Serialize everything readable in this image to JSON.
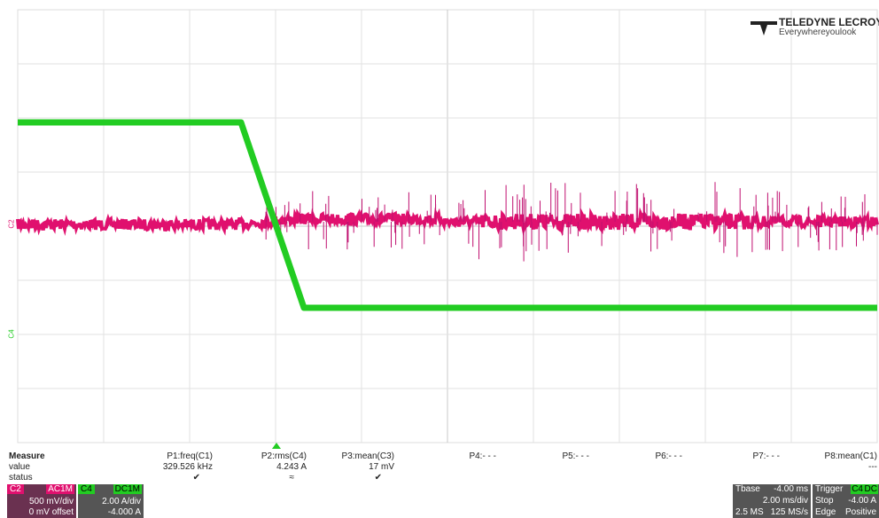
{
  "logo": {
    "name": "TELEDYNE LECROY",
    "tagline": "Everywhereyoulook"
  },
  "traces": [
    {
      "label": "C2"
    },
    {
      "label": "C4"
    }
  ],
  "measure": {
    "row_labels": [
      "Measure",
      "value",
      "status"
    ],
    "params": [
      {
        "name": "P1:freq(C1)",
        "value": "329.526 kHz",
        "status": "✔"
      },
      {
        "name": "P2:rms(C4)",
        "value": "4.243 A",
        "status": "≈"
      },
      {
        "name": "P3:mean(C3)",
        "value": "17 mV",
        "status": "✔"
      },
      {
        "name": "P4:- - -"
      },
      {
        "name": "P5:- - -"
      },
      {
        "name": "P6:- - -"
      },
      {
        "name": "P7:- - -"
      },
      {
        "name": "P8:mean(C1)",
        "value": "---"
      }
    ]
  },
  "channels": [
    {
      "name": "C2",
      "coupling": "AC1M",
      "scale": "500 mV/div",
      "offset": "0 mV offset"
    },
    {
      "name": "C4",
      "coupling": "DC1M",
      "scale": "2.00 A/div",
      "offset": "-4.000 A"
    }
  ],
  "timebase": {
    "label": "Tbase",
    "delay": "-4.00 ms",
    "scale": "2.00 ms/div",
    "samples": "2.5 MS",
    "rate": "125 MS/s"
  },
  "trigger": {
    "label": "Trigger",
    "source": "C4",
    "coupling": "DC",
    "mode": "Stop",
    "level": "-4.00 A",
    "type": "Edge",
    "slope": "Positive"
  }
}
